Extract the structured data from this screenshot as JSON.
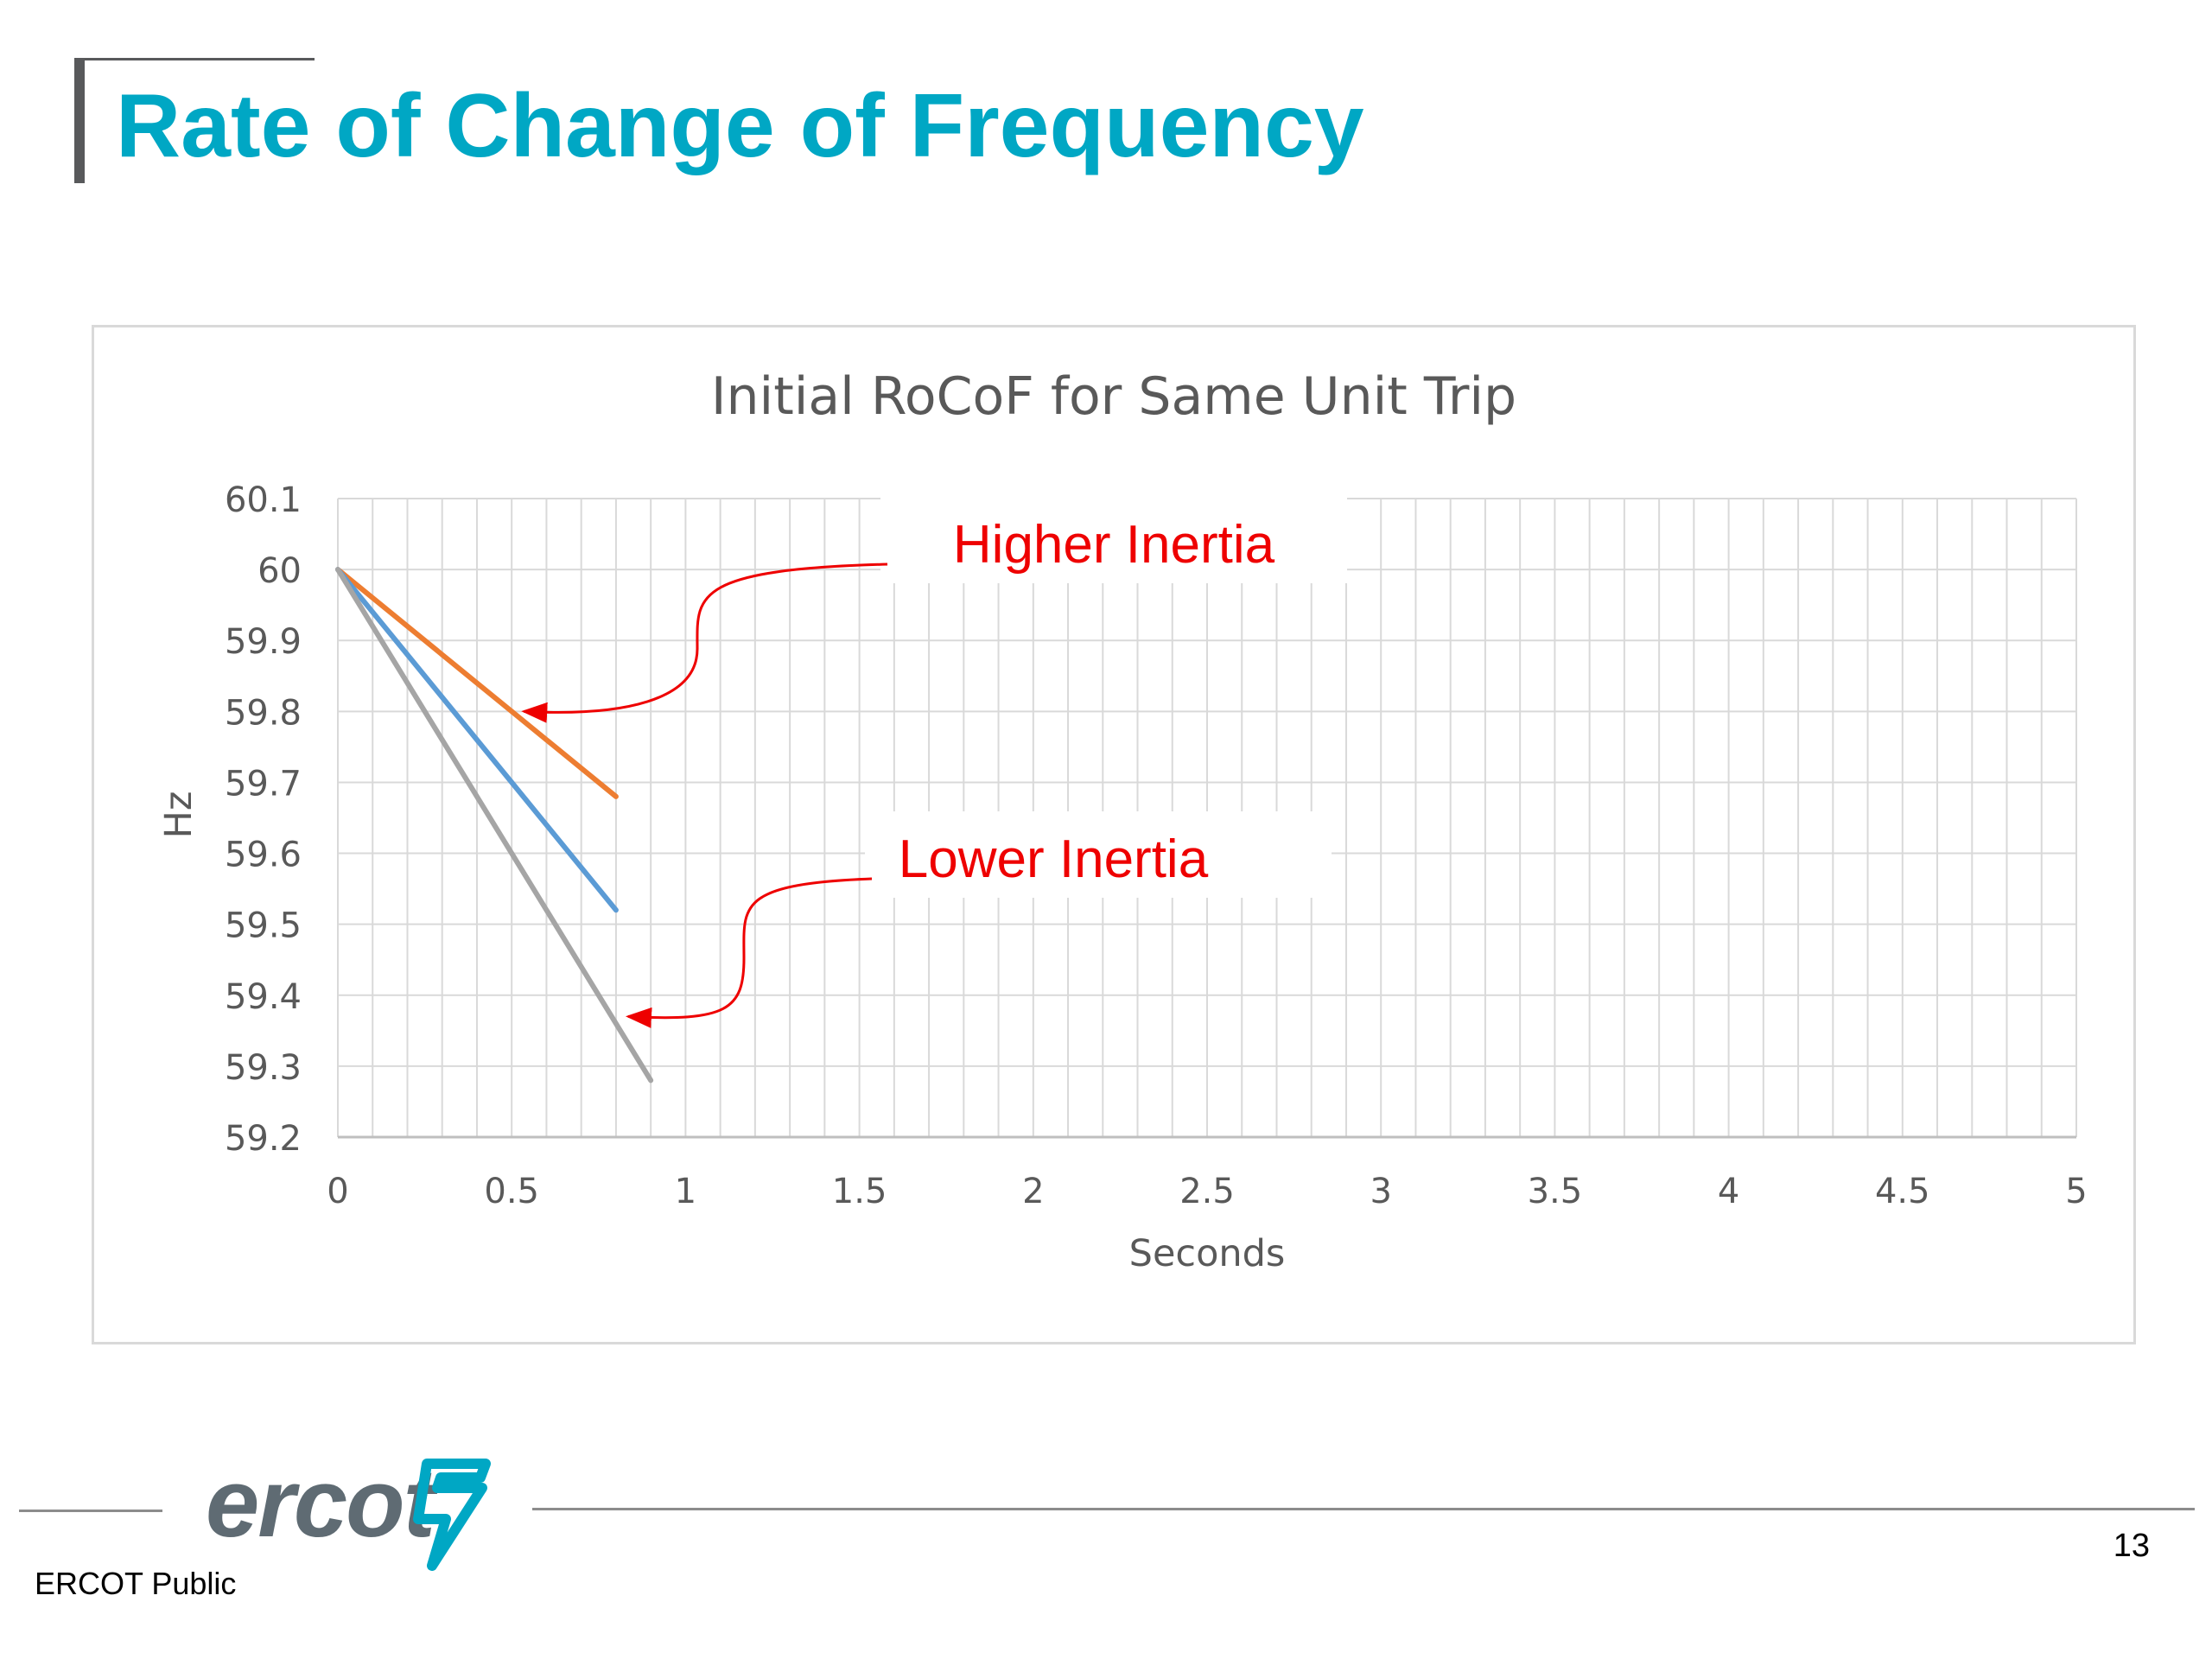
{
  "slide": {
    "title": "Rate of Change of Frequency",
    "footer_label": "ERCOT Public",
    "page_number": "13",
    "logo_text": "ercot"
  },
  "colors": {
    "title": "#00a7c4",
    "accent_bar": "#58595b",
    "annotation": "#ee0000",
    "logo": "#5f6b73",
    "logo_mark": "#00a7c4"
  },
  "chart_data": {
    "type": "line",
    "title": "Initial RoCoF for Same Unit Trip",
    "xlabel": "Seconds",
    "ylabel": "Hz",
    "xlim": [
      0,
      5
    ],
    "ylim": [
      59.2,
      60.1
    ],
    "xticks": [
      0,
      0.5,
      1,
      1.5,
      2,
      2.5,
      3,
      3.5,
      4,
      4.5,
      5
    ],
    "xtick_labels": [
      "0",
      "0.5",
      "1",
      "1.5",
      "2",
      "2.5",
      "3",
      "3.5",
      "4",
      "4.5",
      "5"
    ],
    "yticks": [
      59.2,
      59.3,
      59.4,
      59.5,
      59.6,
      59.7,
      59.8,
      59.9,
      60.0,
      60.1
    ],
    "ytick_labels": [
      "59.2",
      "59.3",
      "59.4",
      "59.5",
      "59.6",
      "59.7",
      "59.8",
      "59.9",
      "60",
      "60.1"
    ],
    "grid": true,
    "minor_x_step": 0.1,
    "legend": "none",
    "series": [
      {
        "color": "#ed7d31",
        "x": [
          0,
          0.3,
          0.5,
          0.8
        ],
        "y": [
          60.0,
          59.88,
          59.8,
          59.68
        ]
      },
      {
        "color": "#5b9bd5",
        "x": [
          0,
          0.4,
          0.5,
          0.8
        ],
        "y": [
          60.0,
          59.76,
          59.7,
          59.52
        ]
      },
      {
        "color": "#a5a5a5",
        "x": [
          0,
          0.5,
          0.9
        ],
        "y": [
          60.0,
          59.6,
          59.28
        ]
      }
    ],
    "annotations": [
      {
        "text": "Higher Inertia",
        "points_to": {
          "x": 0.52,
          "y": 59.8
        }
      },
      {
        "text": "Lower Inertia",
        "points_to": {
          "x": 0.82,
          "y": 59.37
        }
      }
    ]
  }
}
